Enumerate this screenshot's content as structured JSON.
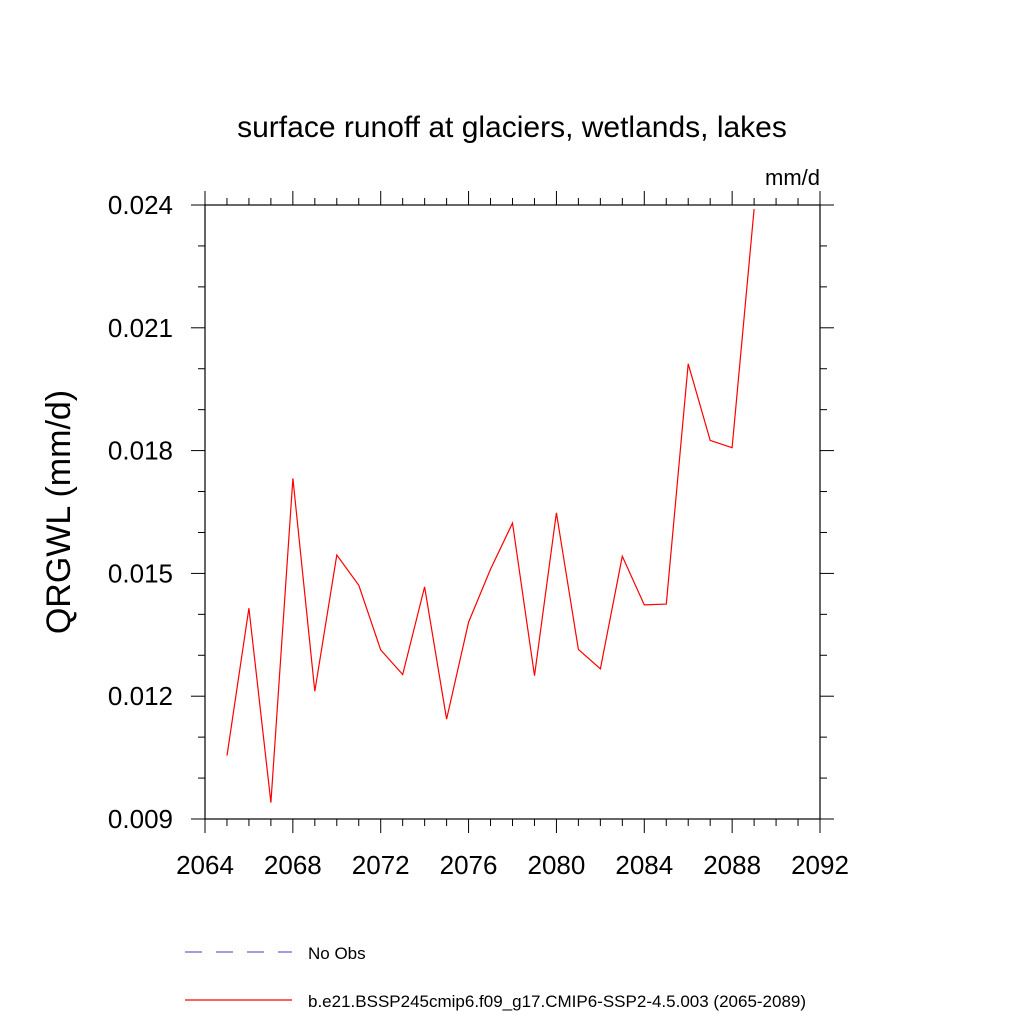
{
  "chart_data": {
    "type": "line",
    "title": "surface runoff at glaciers, wetlands, lakes",
    "units": "mm/d",
    "xlabel": "",
    "ylabel": "QRGWL  (mm/d)",
    "xlim": [
      2064,
      2092
    ],
    "ylim": [
      0.009,
      0.024
    ],
    "x_ticks": [
      2064,
      2068,
      2072,
      2076,
      2080,
      2084,
      2088,
      2092
    ],
    "x_tick_labels": [
      "2064",
      "2068",
      "2072",
      "2076",
      "2080",
      "2084",
      "2088",
      "2092"
    ],
    "y_ticks": [
      0.009,
      0.012,
      0.015,
      0.018,
      0.021,
      0.024
    ],
    "y_tick_labels": [
      "0.009",
      "0.012",
      "0.015",
      "0.018",
      "0.021",
      "0.024"
    ],
    "grid": false,
    "legend_position": "bottom",
    "series": [
      {
        "name": "b.e21.BSSP245cmip6.f09_g17.CMIP6-SSP2-4.5.003 (2065-2089)",
        "color": "#ff0000",
        "style": "solid",
        "x": [
          2065,
          2066,
          2067,
          2068,
          2069,
          2070,
          2071,
          2072,
          2073,
          2074,
          2075,
          2076,
          2077,
          2078,
          2079,
          2080,
          2081,
          2082,
          2083,
          2084,
          2085,
          2086,
          2087,
          2088,
          2089
        ],
        "y": [
          0.01055,
          0.01415,
          0.0094,
          0.01732,
          0.01212,
          0.01545,
          0.01471,
          0.01313,
          0.01253,
          0.01467,
          0.01144,
          0.01381,
          0.0151,
          0.01623,
          0.0125,
          0.01648,
          0.01314,
          0.01267,
          0.01542,
          0.01423,
          0.01425,
          0.02012,
          0.01825,
          0.01807,
          0.0239
        ]
      }
    ],
    "legend": [
      {
        "label": "No Obs",
        "color": "#6666cc",
        "style": "dashed"
      },
      {
        "label": "b.e21.BSSP245cmip6.f09_g17.CMIP6-SSP2-4.5.003 (2065-2089)",
        "color": "#ff0000",
        "style": "solid"
      }
    ]
  }
}
